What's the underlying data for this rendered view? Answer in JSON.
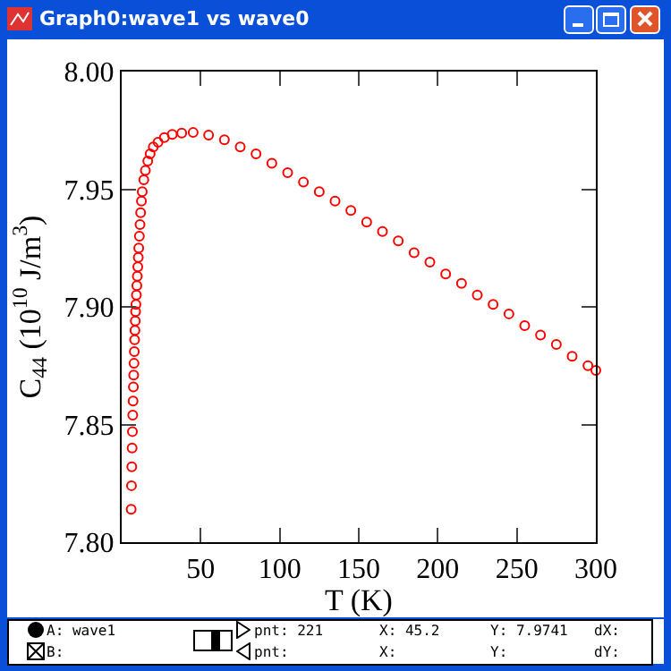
{
  "chart_data": {
    "type": "scatter",
    "title": "Graph0:wave1 vs wave0",
    "xlabel": "T (K)",
    "ylabel": "C$_{44}$ (10$^{10}$ J/m$^{3}$)",
    "x": [
      6.0,
      6.2,
      6.4,
      6.6,
      6.8,
      7.0,
      7.2,
      7.4,
      7.6,
      7.8,
      8.0,
      8.2,
      8.4,
      8.6,
      8.8,
      9.0,
      9.3,
      9.6,
      9.9,
      10.2,
      10.5,
      10.8,
      11.2,
      11.6,
      12.0,
      12.5,
      13,
      14,
      15,
      16.5,
      18,
      20,
      23,
      27,
      32,
      38,
      45.2,
      55,
      65,
      75,
      85,
      95,
      105,
      115,
      125,
      135,
      145,
      155,
      165,
      175,
      185,
      195,
      205,
      215,
      225,
      235,
      245,
      255,
      265,
      275,
      285,
      295,
      300
    ],
    "series": [
      {
        "color": "#ff0000",
        "values": [
          7.814,
          7.824,
          7.832,
          7.84,
          7.847,
          7.854,
          7.86,
          7.866,
          7.871,
          7.876,
          7.881,
          7.886,
          7.89,
          7.894,
          7.898,
          7.901,
          7.905,
          7.909,
          7.913,
          7.917,
          7.921,
          7.925,
          7.93,
          7.935,
          7.94,
          7.945,
          7.949,
          7.954,
          7.958,
          7.962,
          7.965,
          7.968,
          7.97,
          7.972,
          7.9733,
          7.9739,
          7.9741,
          7.973,
          7.971,
          7.968,
          7.965,
          7.961,
          7.957,
          7.953,
          7.949,
          7.945,
          7.941,
          7.936,
          7.932,
          7.928,
          7.923,
          7.919,
          7.914,
          7.91,
          7.905,
          7.901,
          7.897,
          7.892,
          7.888,
          7.884,
          7.879,
          7.875,
          7.873
        ]
      }
    ],
    "xlim": [
      0,
      300
    ],
    "xticks": [
      50,
      100,
      150,
      200,
      250,
      300
    ],
    "ylim": [
      7.8,
      8.0
    ],
    "yticks": [
      {
        "value": 7.8,
        "label": "7.80"
      },
      {
        "value": 7.85,
        "label": "7.85"
      },
      {
        "value": 7.9,
        "label": "7.90"
      },
      {
        "value": 7.95,
        "label": "7.95"
      },
      {
        "value": 8.0,
        "label": "8.00"
      }
    ],
    "marker": "circle",
    "grid": false,
    "annotations": [
      "A: wave1",
      "B:",
      "pnt: 221",
      "X: 45.2",
      "Y: 7.9741",
      "dX:",
      "pnt:",
      "X:",
      "Y:",
      "dY:"
    ]
  }
}
